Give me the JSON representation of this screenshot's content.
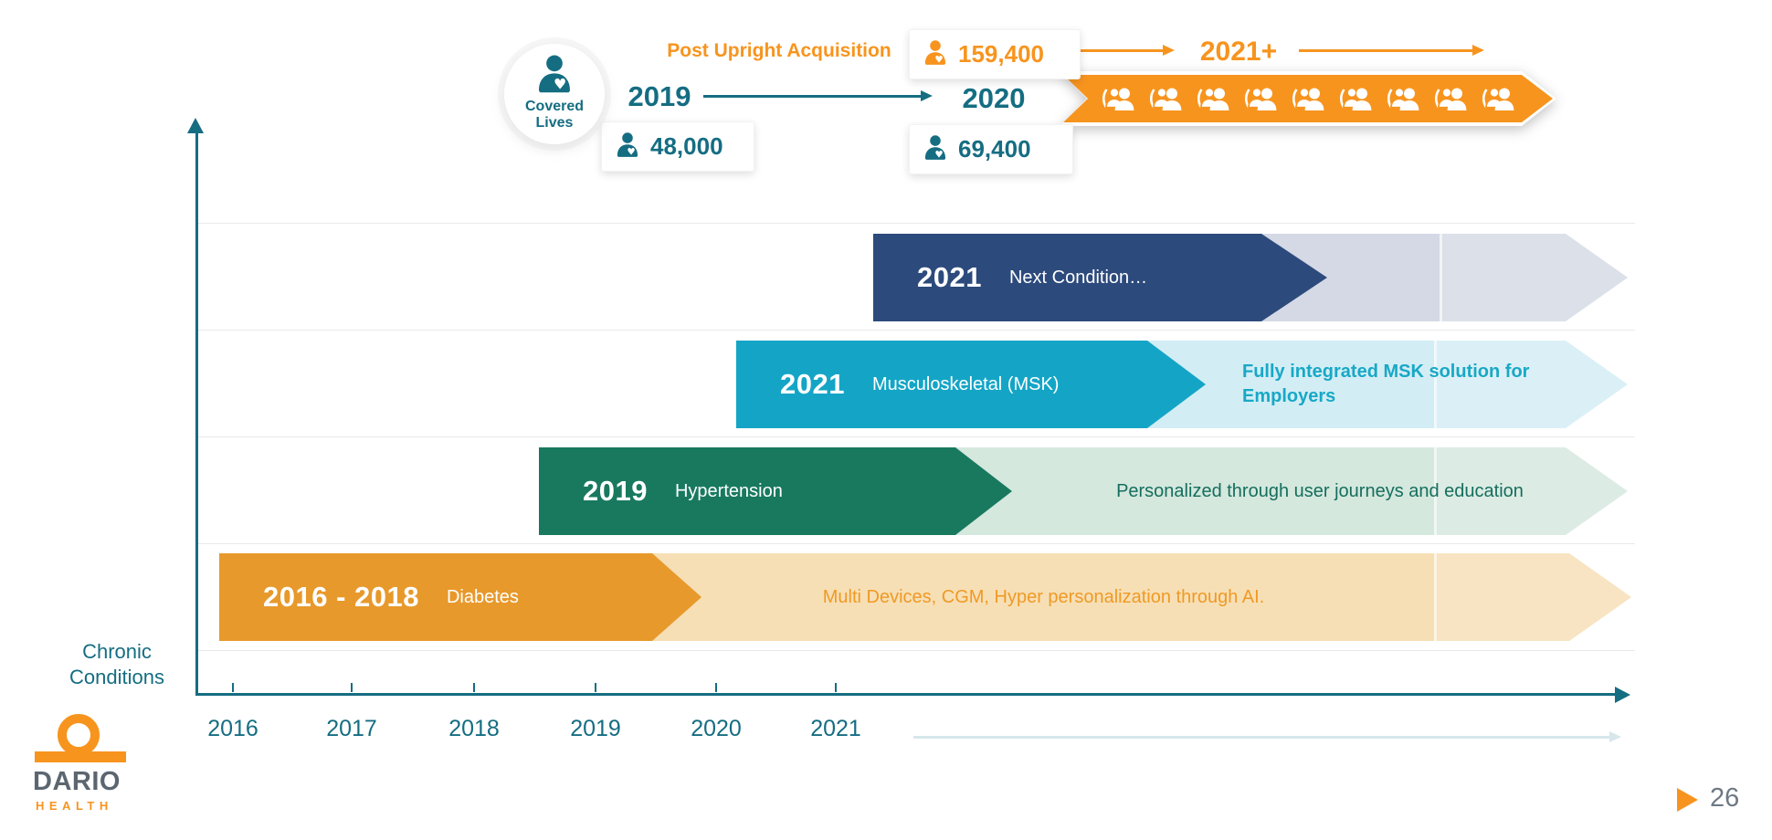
{
  "covered_lives": {
    "badge_label_line1": "Covered",
    "badge_label_line2": "Lives",
    "post_upright_label": "Post Upright Acquisition",
    "series": [
      {
        "year": "2019",
        "value": "48,000"
      },
      {
        "year": "2020",
        "value": "69,400"
      },
      {
        "year": "2021+",
        "value": "159,400"
      }
    ],
    "group_icon_count": 9
  },
  "chart_data": {
    "type": "timeline",
    "y_axis_label": "Chronic Conditions",
    "x_ticks": [
      "2016",
      "2017",
      "2018",
      "2019",
      "2020",
      "2021"
    ],
    "axis_color": "#156d82",
    "accent_orange": "#f7941e",
    "rows": [
      {
        "period": "2021",
        "condition": "Next Condition…",
        "note": "",
        "bar_color": "#2c4a7c",
        "trail_color": "#d4d9e5",
        "note_color": ""
      },
      {
        "period": "2021",
        "condition": "Musculoskeletal (MSK)",
        "note": "Fully integrated MSK solution for Employers",
        "bar_color": "#14a5c6",
        "trail_color": "#d3edf5",
        "note_color": "#18a8c6"
      },
      {
        "period": "2019",
        "condition": "Hypertension",
        "note": "Personalized through user journeys and education",
        "bar_color": "#18795f",
        "trail_color": "#d5e8de",
        "note_color": "#156e5d"
      },
      {
        "period": "2016 - 2018",
        "condition": "Diabetes",
        "note": "Multi Devices, CGM, Hyper personalization through AI.",
        "bar_color": "#e8992b",
        "trail_color": "#f7dfb5",
        "note_color": "#ef9a25"
      }
    ]
  },
  "footer": {
    "brand_line1": "DARIO",
    "brand_line2": "HEALTH",
    "page_number": "26"
  }
}
